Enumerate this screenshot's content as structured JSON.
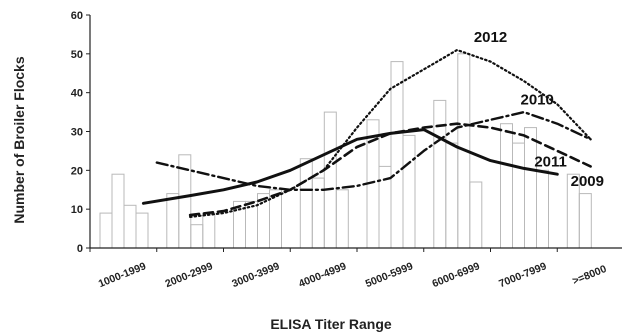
{
  "chart_data": {
    "type": "bar+line",
    "title": "",
    "xlabel": "ELISA Titer Range",
    "ylabel": "Number of Broiler Flocks",
    "ylim": [
      0,
      60
    ],
    "yticks": [
      0,
      10,
      20,
      30,
      40,
      50,
      60
    ],
    "categories": [
      "1000-1999",
      "2000-2999",
      "3000-3999",
      "4000-4999",
      "5000-5999",
      "6000-6999",
      "7000-7999",
      ">=8000"
    ],
    "grid": false,
    "bar_groups": [
      [
        9,
        19,
        11,
        9,
        0
      ],
      [
        14,
        24,
        6,
        9,
        0
      ],
      [
        12,
        12,
        14,
        15,
        0
      ],
      [
        23,
        18,
        35,
        15,
        0
      ],
      [
        33,
        21,
        48,
        29,
        0
      ],
      [
        38,
        27,
        50,
        17,
        0
      ],
      [
        32,
        27,
        31,
        20,
        0
      ],
      [
        19,
        14,
        0,
        0,
        0
      ]
    ],
    "series": [
      {
        "name": "2012",
        "style": "dotted",
        "x": [
          1.5,
          2.0,
          2.5,
          3.0,
          3.5,
          4.0,
          4.5,
          5.0,
          5.5,
          6.0,
          6.5,
          7.0,
          7.5
        ],
        "values": [
          8,
          9,
          11,
          15,
          20,
          31,
          41,
          46,
          51,
          48,
          43,
          37,
          28
        ]
      },
      {
        "name": "2010",
        "style": "dash-dot",
        "x": [
          1.0,
          1.5,
          2.0,
          2.5,
          3.0,
          3.5,
          4.0,
          4.5,
          5.0,
          5.5,
          6.0,
          6.5,
          7.0,
          7.5
        ],
        "values": [
          22,
          20,
          18,
          16,
          15,
          15,
          16,
          18,
          25,
          31,
          33,
          35,
          32,
          28
        ]
      },
      {
        "name": "2011",
        "style": "dashed",
        "x": [
          1.5,
          2.0,
          2.5,
          3.0,
          3.5,
          4.0,
          4.5,
          5.0,
          5.5,
          6.0,
          6.5,
          7.0,
          7.5
        ],
        "values": [
          8.5,
          9.5,
          12,
          15,
          20,
          26,
          29.5,
          31,
          32,
          31,
          29,
          25,
          21
        ]
      },
      {
        "name": "2009",
        "style": "solid",
        "x": [
          0.8,
          1.5,
          2.0,
          2.5,
          3.0,
          3.5,
          4.0,
          4.5,
          5.0,
          5.5,
          6.0,
          6.5,
          7.0
        ],
        "values": [
          11.5,
          13.5,
          15,
          17,
          20,
          24,
          28,
          29.5,
          30.5,
          26,
          22.5,
          20.5,
          19
        ]
      }
    ],
    "series_label_positions": {
      "2012": "top",
      "2010": "upper-right",
      "2011": "right",
      "2009": "lower-right"
    },
    "legend": "none"
  }
}
